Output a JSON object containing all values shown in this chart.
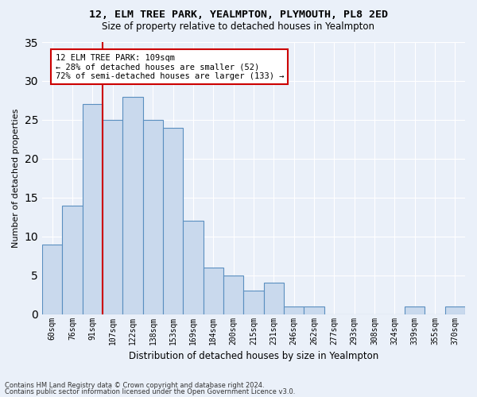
{
  "title": "12, ELM TREE PARK, YEALMPTON, PLYMOUTH, PL8 2ED",
  "subtitle": "Size of property relative to detached houses in Yealmpton",
  "xlabel": "Distribution of detached houses by size in Yealmpton",
  "ylabel": "Number of detached properties",
  "bar_color": "#c9d9ed",
  "bar_edge_color": "#5a8fc0",
  "categories": [
    "60sqm",
    "76sqm",
    "91sqm",
    "107sqm",
    "122sqm",
    "138sqm",
    "153sqm",
    "169sqm",
    "184sqm",
    "200sqm",
    "215sqm",
    "231sqm",
    "246sqm",
    "262sqm",
    "277sqm",
    "293sqm",
    "308sqm",
    "324sqm",
    "339sqm",
    "355sqm",
    "370sqm"
  ],
  "values": [
    9,
    14,
    27,
    25,
    28,
    25,
    24,
    12,
    6,
    5,
    3,
    4,
    1,
    1,
    0,
    0,
    0,
    0,
    1,
    0,
    1
  ],
  "ylim": [
    0,
    35
  ],
  "yticks": [
    0,
    5,
    10,
    15,
    20,
    25,
    30,
    35
  ],
  "red_line_bar_index": 3,
  "annotation_line1": "12 ELM TREE PARK: 109sqm",
  "annotation_line2": "← 28% of detached houses are smaller (52)",
  "annotation_line3": "72% of semi-detached houses are larger (133) →",
  "footnote1": "Contains HM Land Registry data © Crown copyright and database right 2024.",
  "footnote2": "Contains public sector information licensed under the Open Government Licence v3.0.",
  "bg_color": "#eaf0f9",
  "grid_color": "#ffffff",
  "annotation_box_color": "#ffffff",
  "annotation_box_edge": "#cc0000",
  "red_line_color": "#cc0000"
}
